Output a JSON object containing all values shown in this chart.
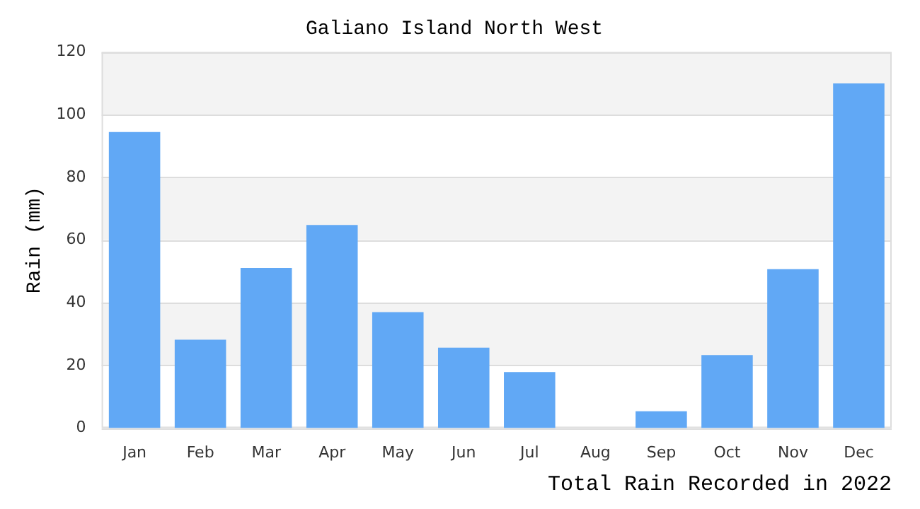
{
  "chart_data": {
    "type": "bar",
    "title": "Galiano Island North West",
    "ylabel": "Rain (mm)",
    "categories": [
      "Jan",
      "Feb",
      "Mar",
      "Apr",
      "May",
      "Jun",
      "Jul",
      "Aug",
      "Sep",
      "Oct",
      "Nov",
      "Dec"
    ],
    "values": [
      94.5,
      28.2,
      51.1,
      64.8,
      37,
      25.7,
      17.9,
      0,
      5.4,
      23.3,
      50.7,
      110
    ],
    "color": "#61a8f5",
    "ylim": [
      0,
      120
    ],
    "yticks": [
      0,
      20,
      40,
      60,
      80,
      100,
      120
    ],
    "grid": "y",
    "annotations": [
      "Total Rain Recorded in 2022"
    ]
  }
}
